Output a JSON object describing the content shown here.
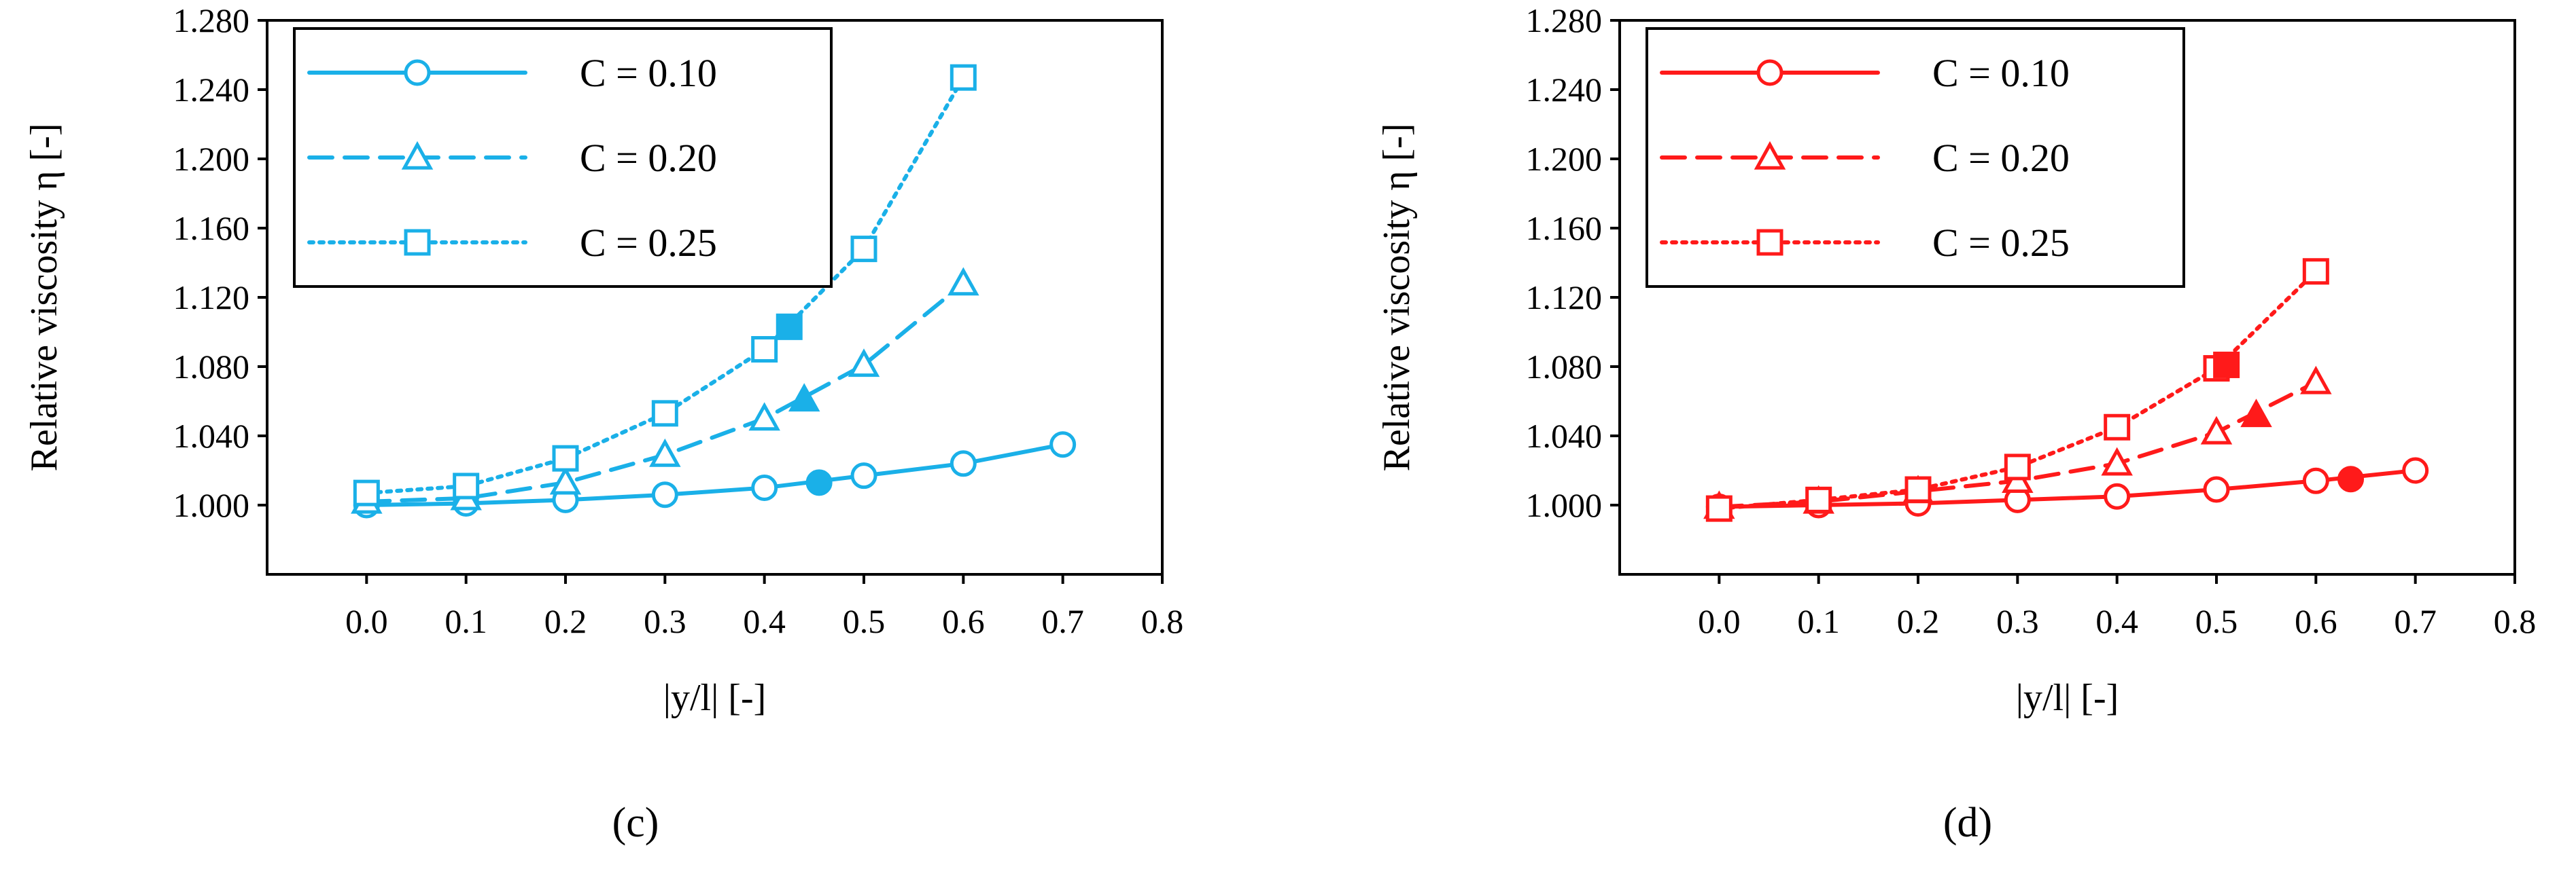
{
  "chart_data": [
    {
      "type": "line",
      "panel_label": "(c)",
      "xlabel": "|y/l| [-]",
      "ylabel": "Relative viscosity η [-]",
      "xlim": [
        -0.1,
        0.8
      ],
      "ylim": [
        0.96,
        1.28
      ],
      "xticks": [
        "0.0",
        "0.1",
        "0.2",
        "0.3",
        "0.4",
        "0.5",
        "0.6",
        "0.7",
        "0.8"
      ],
      "yticks": [
        "1.000",
        "1.040",
        "1.080",
        "1.120",
        "1.160",
        "1.200",
        "1.240",
        "1.280"
      ],
      "grid": false,
      "legend_position": "top-left",
      "color": "#1ab0e8",
      "series": [
        {
          "name": "C = 0.10",
          "marker": "circle",
          "line": "solid",
          "x": [
            0.0,
            0.1,
            0.2,
            0.3,
            0.4,
            0.5,
            0.6,
            0.7
          ],
          "y": [
            1.0,
            1.001,
            1.003,
            1.006,
            1.01,
            1.017,
            1.024,
            1.035
          ],
          "highlight": {
            "x": 0.455,
            "y": 1.013
          }
        },
        {
          "name": "C = 0.20",
          "marker": "triangle",
          "line": "dashed",
          "x": [
            0.0,
            0.1,
            0.2,
            0.3,
            0.4,
            0.5,
            0.6
          ],
          "y": [
            1.002,
            1.004,
            1.013,
            1.029,
            1.05,
            1.081,
            1.128
          ],
          "highlight": {
            "x": 0.44,
            "y": 1.061
          }
        },
        {
          "name": "C = 0.25",
          "marker": "square",
          "line": "dotted",
          "x": [
            0.0,
            0.1,
            0.2,
            0.3,
            0.4,
            0.5,
            0.6
          ],
          "y": [
            1.007,
            1.011,
            1.027,
            1.053,
            1.09,
            1.148,
            1.247
          ],
          "highlight": {
            "x": 0.425,
            "y": 1.103
          }
        }
      ]
    },
    {
      "type": "line",
      "panel_label": "(d)",
      "xlabel": "|y/l| [-]",
      "ylabel": "Relative viscosity η [-]",
      "xlim": [
        -0.1,
        0.8
      ],
      "ylim": [
        0.96,
        1.28
      ],
      "xticks": [
        "0.0",
        "0.1",
        "0.2",
        "0.3",
        "0.4",
        "0.5",
        "0.6",
        "0.7",
        "0.8"
      ],
      "yticks": [
        "1.000",
        "1.040",
        "1.080",
        "1.120",
        "1.160",
        "1.200",
        "1.240",
        "1.280"
      ],
      "grid": false,
      "legend_position": "top-left",
      "color": "#ff1a1a",
      "series": [
        {
          "name": "C = 0.10",
          "marker": "circle",
          "line": "solid",
          "x": [
            0.0,
            0.1,
            0.2,
            0.3,
            0.4,
            0.5,
            0.6,
            0.7
          ],
          "y": [
            0.999,
            1.0,
            1.001,
            1.003,
            1.005,
            1.009,
            1.014,
            1.02
          ],
          "highlight": {
            "x": 0.635,
            "y": 1.015
          }
        },
        {
          "name": "C = 0.20",
          "marker": "triangle",
          "line": "dashed",
          "x": [
            0.0,
            0.1,
            0.2,
            0.3,
            0.4,
            0.5,
            0.6
          ],
          "y": [
            0.999,
            1.002,
            1.008,
            1.014,
            1.024,
            1.042,
            1.071
          ],
          "highlight": {
            "x": 0.54,
            "y": 1.052
          }
        },
        {
          "name": "C = 0.25",
          "marker": "square",
          "line": "dotted",
          "x": [
            0.0,
            0.1,
            0.2,
            0.3,
            0.4,
            0.5,
            0.6
          ],
          "y": [
            0.998,
            1.003,
            1.009,
            1.022,
            1.045,
            1.079,
            1.135
          ],
          "highlight": {
            "x": 0.51,
            "y": 1.081
          }
        }
      ]
    }
  ]
}
